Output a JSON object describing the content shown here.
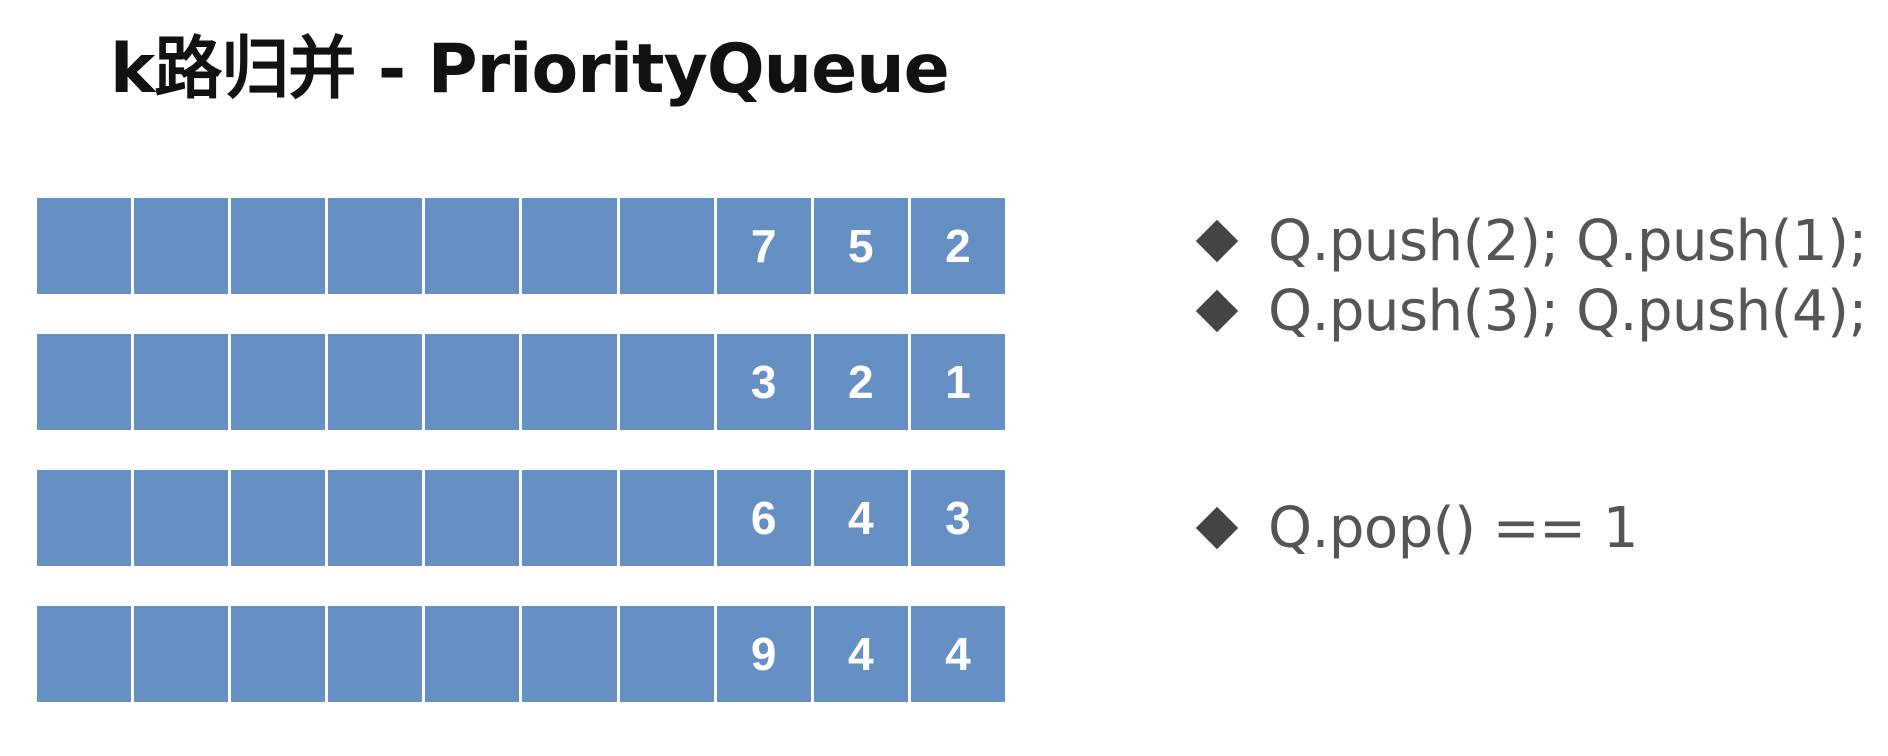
{
  "title": "k路归并 - PriorityQueue",
  "arrays": [
    {
      "cells": [
        "",
        "",
        "",
        "",
        "",
        "",
        "",
        "7",
        "5",
        "2"
      ]
    },
    {
      "cells": [
        "",
        "",
        "",
        "",
        "",
        "",
        "",
        "3",
        "2",
        "1"
      ]
    },
    {
      "cells": [
        "",
        "",
        "",
        "",
        "",
        "",
        "",
        "6",
        "4",
        "3"
      ]
    },
    {
      "cells": [
        "",
        "",
        "",
        "",
        "",
        "",
        "",
        "9",
        "4",
        "4"
      ]
    }
  ],
  "operations": [
    {
      "text": "Q.push(2); Q.push(1);"
    },
    {
      "text": "Q.push(3); Q.push(4);"
    },
    {
      "text": "Q.pop() == 1"
    }
  ],
  "colors": {
    "cell_fill": "#6690c3",
    "cell_text": "#ffffff",
    "bullet": "#444444",
    "op_text": "#555555",
    "title_text": "#111111"
  },
  "icons": {
    "bullet": "diamond-bullet-icon"
  }
}
